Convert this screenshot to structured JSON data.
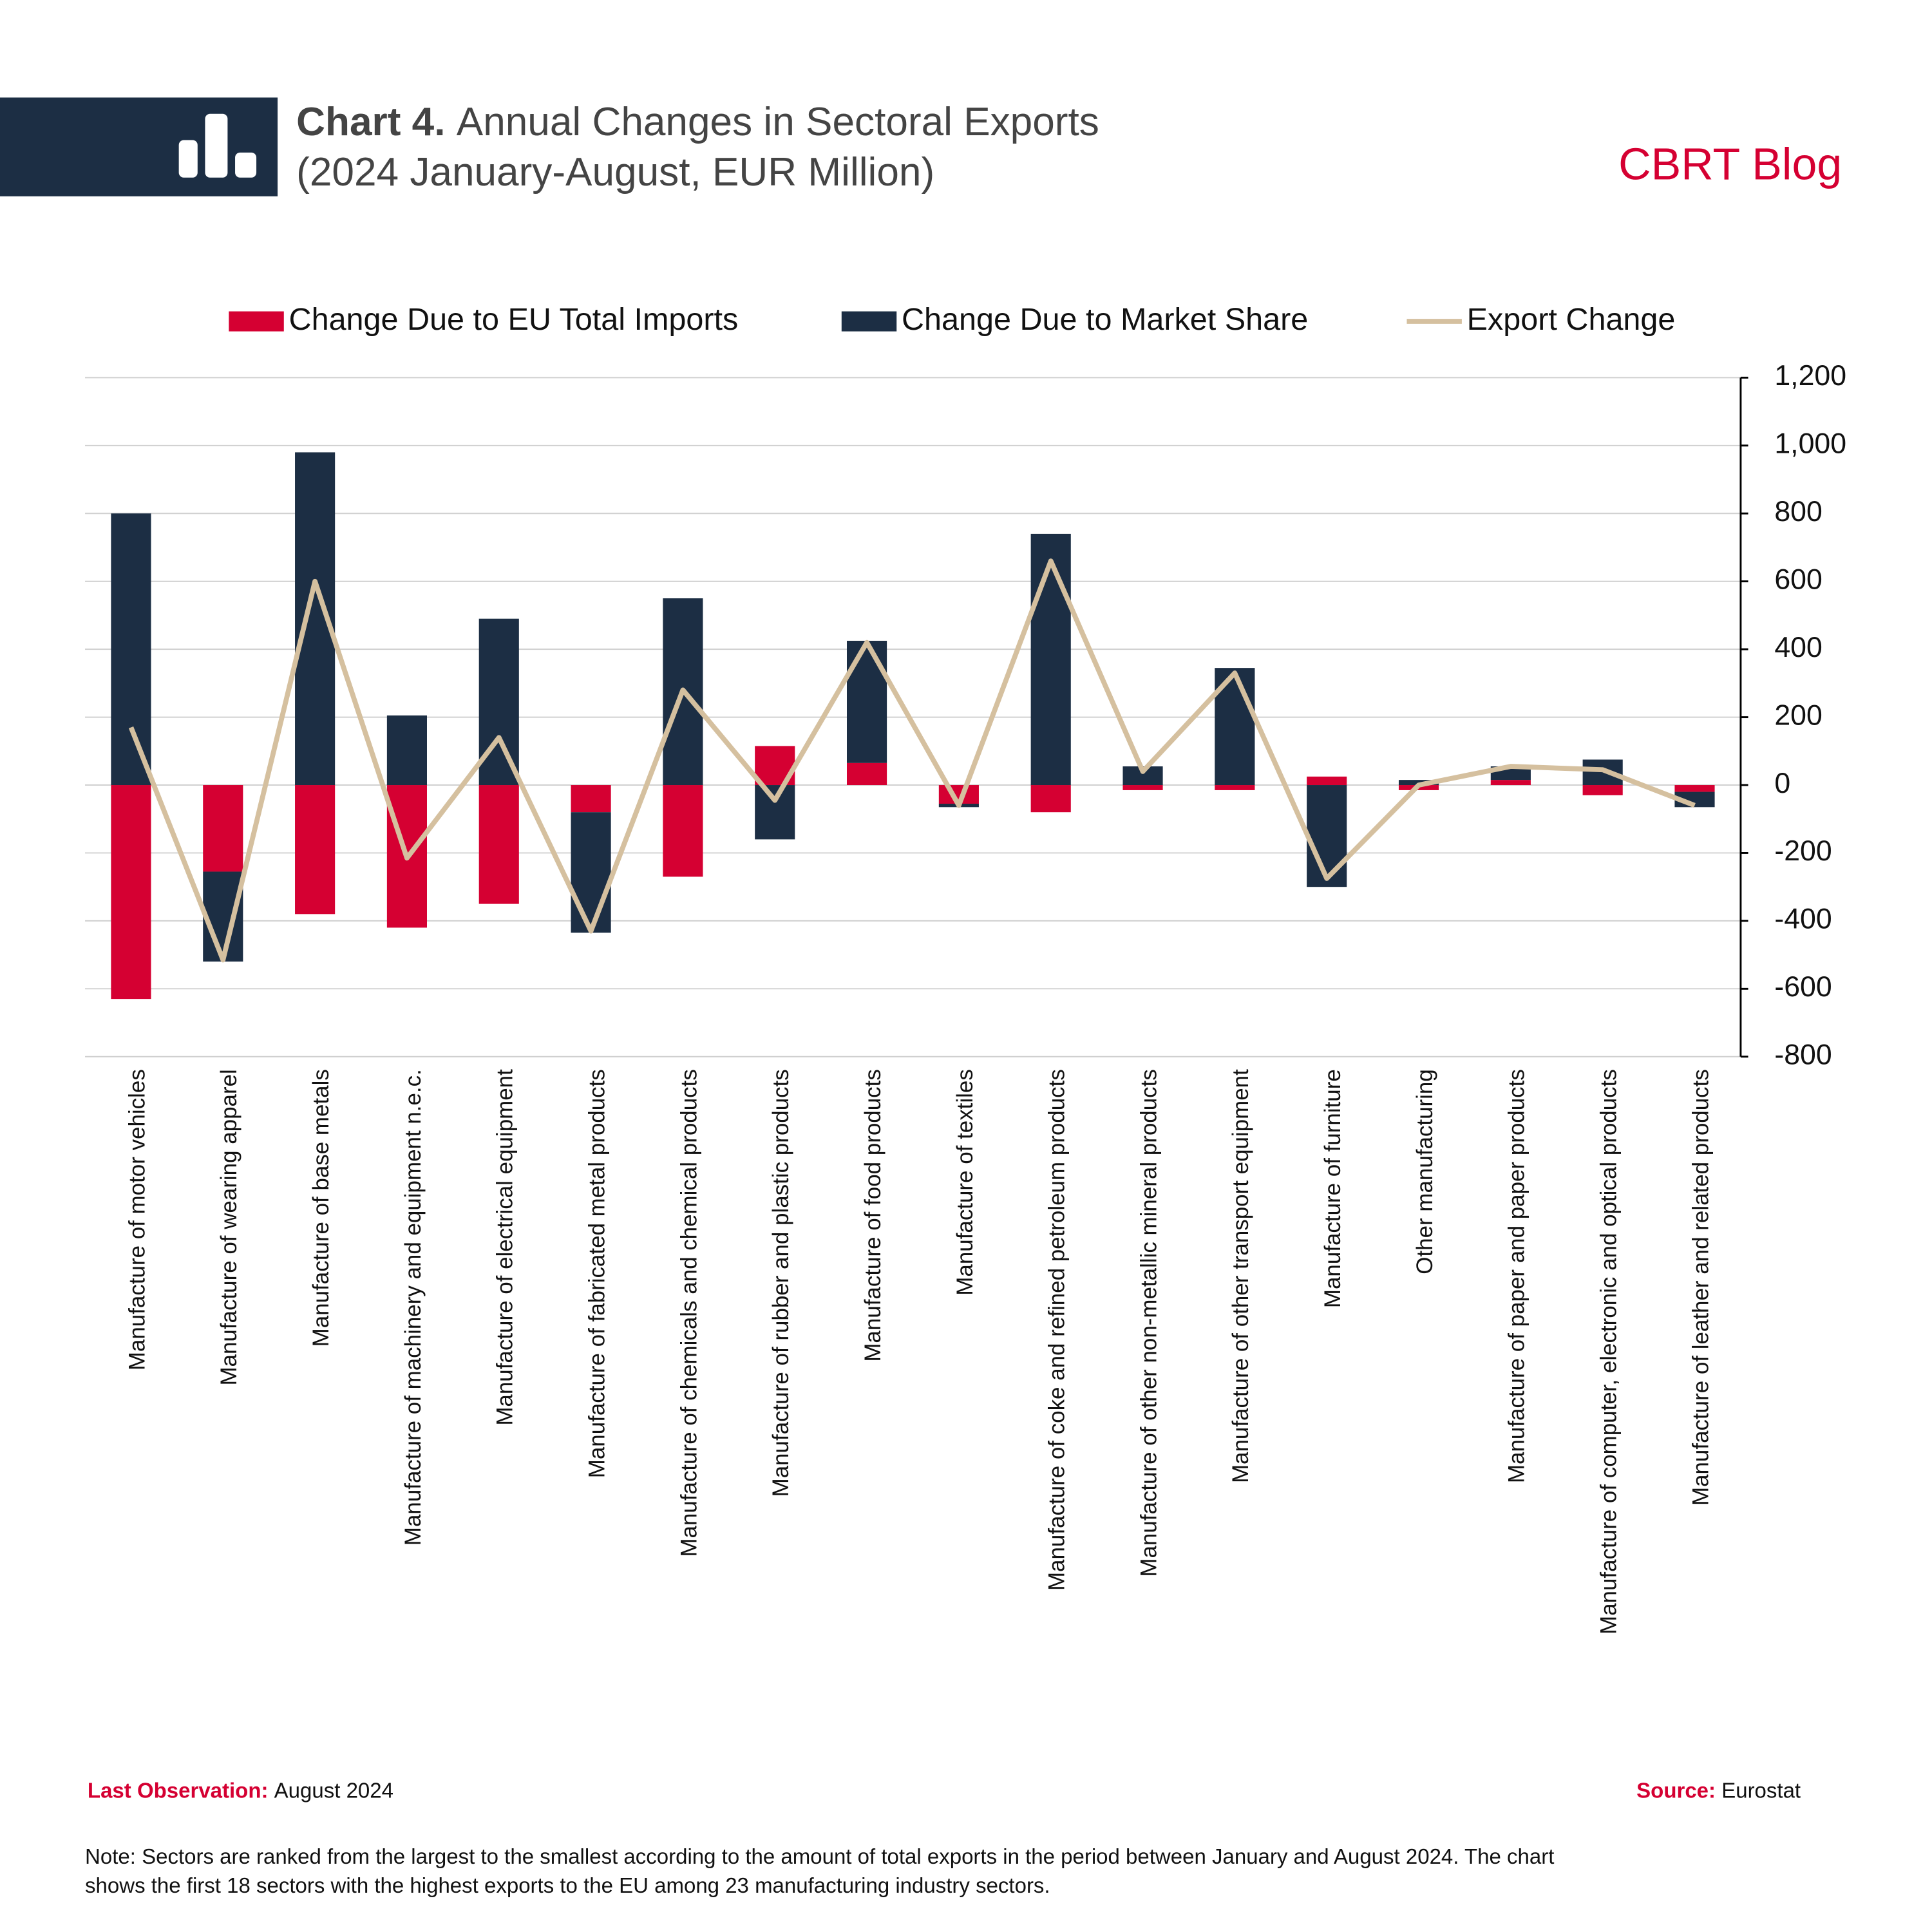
{
  "header": {
    "chart_label": "Chart 4.",
    "brand": "CBRT Blog"
  },
  "chart_data": {
    "type": "stacked-bar-line",
    "title": "Annual Changes in Sectoral Exports",
    "subtitle": "(2024 January-August, EUR Million)",
    "categories": [
      "Manufacture of motor vehicles",
      "Manufacture of wearing apparel",
      "Manufacture of base metals",
      "Manufacture of machinery and equipment n.e.c.",
      "Manufacture of electrical equipment",
      "Manufacture of fabricated metal products",
      "Manufacture of chemicals and chemical products",
      "Manufacture of rubber and plastic products",
      "Manufacture of food products",
      "Manufacture of textiles",
      "Manufacture of coke and refined petroleum products",
      "Manufacture of other non-metallic mineral products",
      "Manufacture of other transport equipment",
      "Manufacture of furniture",
      "Other manufacturing",
      "Manufacture of paper and paper products",
      "Manufacture of computer, electronic and optical products",
      "Manufacture of leather and related products"
    ],
    "series": [
      {
        "name": "Change Due to EU Total Imports",
        "type": "bar",
        "color": "#d50032",
        "values": [
          -630,
          -255,
          -380,
          -420,
          -350,
          -80,
          -270,
          115,
          65,
          -55,
          -80,
          -15,
          -15,
          25,
          -15,
          15,
          -30,
          -20
        ]
      },
      {
        "name": "Change Due to Market Share",
        "type": "bar",
        "color": "#1c2e44",
        "values": [
          800,
          -265,
          980,
          205,
          490,
          -355,
          550,
          -160,
          360,
          -10,
          740,
          55,
          345,
          -300,
          15,
          40,
          75,
          -45
        ]
      },
      {
        "name": "Export Change",
        "type": "line",
        "color": "#d5c09f",
        "values": [
          170,
          -515,
          600,
          -215,
          140,
          -430,
          280,
          -45,
          420,
          -60,
          660,
          40,
          330,
          -275,
          0,
          55,
          45,
          -60
        ]
      }
    ],
    "ylim": [
      -800,
      1200
    ],
    "yticks": [
      -800,
      -600,
      -400,
      -200,
      0,
      200,
      400,
      600,
      800,
      {
        "value": 1000,
        "label": "1,000"
      },
      {
        "value": 1200,
        "label": "1,200"
      }
    ],
    "y_axis_side": "right",
    "grid": true,
    "legend": "top"
  },
  "footer": {
    "last_observation_label": "Last Observation:",
    "last_observation": "August 2024",
    "source_label": "Source:",
    "source": "Eurostat",
    "note": [
      "Note: Sectors are ranked from the largest to the smallest according to the amount of total exports in the period between January and August 2024. The chart",
      "shows the first 18 sectors with the highest exports to the EU among 23 manufacturing industry sectors."
    ]
  }
}
